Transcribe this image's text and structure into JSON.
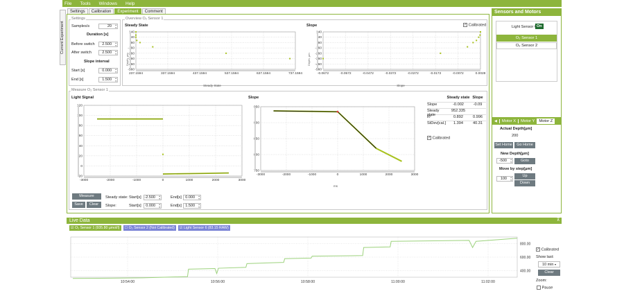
{
  "menu": [
    "File",
    "Tools",
    "Windows",
    "Help"
  ],
  "tabs": [
    "Settings",
    "Calibration",
    "Experiment",
    "Comment"
  ],
  "vertical_tab": "Current Experiment",
  "settings": {
    "title": "Settings",
    "samples_label": "Samples/s",
    "samples_value": "20",
    "duration_label": "Duration [s]",
    "before_label": "Before switch",
    "before_value": "2.500",
    "after_label": "After switch",
    "after_value": "2.500",
    "slope_interval_label": "Slope interval",
    "start_label": "Start [s]",
    "start_value": "0.000",
    "end_label": "End [s]",
    "end_value": "1.500"
  },
  "overview": {
    "title": "Overview O₂ Sensor 1",
    "steady_title": "Steady State",
    "slope_title": "Slope",
    "calibrated_label": "Calibrated",
    "steady_xlabel": "Steady State",
    "slope_xlabel": "Slope",
    "steady_ylabel": "Depth, µm",
    "slope_ylabel": "Depth, µm"
  },
  "measure": {
    "title": "Measure O₂ Sensor 1",
    "light_title": "Light Signal",
    "slope_title": "Slope",
    "slope_xlabel": "ms",
    "table_headers": [
      "",
      "Steady state",
      "Slope"
    ],
    "table_rows": [
      [
        "Slope",
        "-0.002",
        "-0.09"
      ],
      [
        "Steady state",
        "952.335",
        ""
      ],
      [
        "R²",
        "0.892",
        "0.996"
      ],
      [
        "StDev[cal.]",
        "1.394",
        "40.31"
      ]
    ],
    "calibrated_label": "Calibrated",
    "measure_btn": "Measure",
    "save_btn": "Save",
    "clear_btn": "Clear",
    "steady_label": "Steady state:",
    "slope_label": "Slope:",
    "start_label": "Start[s]",
    "end_label": "End[s]",
    "steady_start": "-2.500",
    "steady_end": "0.000",
    "slope_start": "0.000",
    "slope_end": "1.500"
  },
  "sensors": {
    "title": "Sensors and Motors",
    "light_sensor_label": "Light Sensor 6",
    "on_label": "On",
    "items": [
      "O₂ Sensor 1",
      "O₂ Sensor 2"
    ]
  },
  "motors": {
    "tabs": [
      "Motor X",
      "Motor Y",
      "Motor Z"
    ],
    "actual_depth_label": "Actual Depth[µm]",
    "actual_depth_value": "200",
    "set_home": "Set Home",
    "go_home": "Go Home",
    "new_depth_label": "New Depth[µm]",
    "new_depth_value": "-500",
    "goto": "Goto",
    "move_label": "Move by step[µm]",
    "move_value": "100",
    "up": "Up",
    "down": "Down"
  },
  "live": {
    "title": "Live Data",
    "legend": [
      "O₂ Sensor 1 (935.80 µmol/l)",
      "O₂ Sensor 2 (Not Calibrated)",
      "Light Sensor 6 (83.15 RAW)"
    ],
    "calibrated_label": "Calibrated",
    "show_last_label": "Show last:",
    "show_last_value": "10 min",
    "clear_btn": "Clear",
    "zoom_label": "Zoom:",
    "pause_label": "Pause"
  },
  "colors": {
    "accent": "#8db53c",
    "dark_button": "#6e7a80",
    "sensor2": "#7b84d6"
  },
  "chart_data": [
    {
      "type": "scatter",
      "title": "Steady State",
      "xlabel": "Steady State",
      "ylabel": "Depth, µm",
      "xticks": [
        "237.1594",
        "337.1594",
        "437.1594",
        "537.1594",
        "637.1594",
        "737.1594"
      ],
      "yticks": [
        "-560",
        "-460",
        "-360",
        "-260",
        "-160",
        "-60",
        "40",
        "140"
      ],
      "x": [
        237.16,
        237.16,
        237.16,
        240,
        250,
        290,
        520,
        720
      ],
      "y": [
        -560,
        -500,
        -460,
        -400,
        -360,
        -280,
        -160,
        -60
      ]
    },
    {
      "type": "scatter",
      "title": "Slope",
      "xlabel": "Slope",
      "ylabel": "Depth, µm",
      "xticks": [
        "-0.0672",
        "-0.0572",
        "-0.0472",
        "-0.0372",
        "-0.0272",
        "-0.0172",
        "-0.0072",
        "0.0028"
      ],
      "yticks": [
        "-560",
        "-460",
        "-360",
        "-260",
        "-160",
        "-60",
        "40",
        "140"
      ],
      "x": [
        0.0028,
        0.0026,
        0.002,
        0.001,
        -0.0005,
        -0.003,
        -0.015,
        -0.0672
      ],
      "y": [
        -560,
        -500,
        -460,
        -400,
        -360,
        -280,
        -160,
        -60
      ]
    },
    {
      "type": "line",
      "title": "Light Signal",
      "xticks": [
        "-3000",
        "-2000",
        "-1000",
        "0",
        "1000",
        "2000",
        "3000"
      ],
      "yticks": [
        "-20",
        "0",
        "20",
        "40",
        "60",
        "80",
        "100",
        "120"
      ],
      "x": [
        -2500,
        0,
        0,
        2500
      ],
      "y": [
        93,
        93,
        -16,
        -14
      ]
    },
    {
      "type": "line",
      "title": "Slope",
      "xlabel": "ms",
      "xticks": [
        "-3000",
        "-2000",
        "-1000",
        "0",
        "1000",
        "2000",
        "3000"
      ],
      "yticks": [
        "750",
        "800",
        "850",
        "900",
        "950"
      ],
      "x": [
        -2500,
        0,
        1500,
        2500
      ],
      "y": [
        955,
        952,
        820,
        773
      ]
    },
    {
      "type": "line",
      "title": "Live Data",
      "xticks": [
        "10:54:00",
        "10:56:00",
        "10:58:00",
        "11:00:00",
        "11:02:00"
      ],
      "yticks": [
        "400.00",
        "600.00",
        "800.00"
      ],
      "series": [
        {
          "name": "O₂ Sensor 1 (935.80 µmol/l)",
          "values": [
            280,
            300,
            500,
            610,
            710,
            860,
            930
          ]
        }
      ]
    }
  ]
}
